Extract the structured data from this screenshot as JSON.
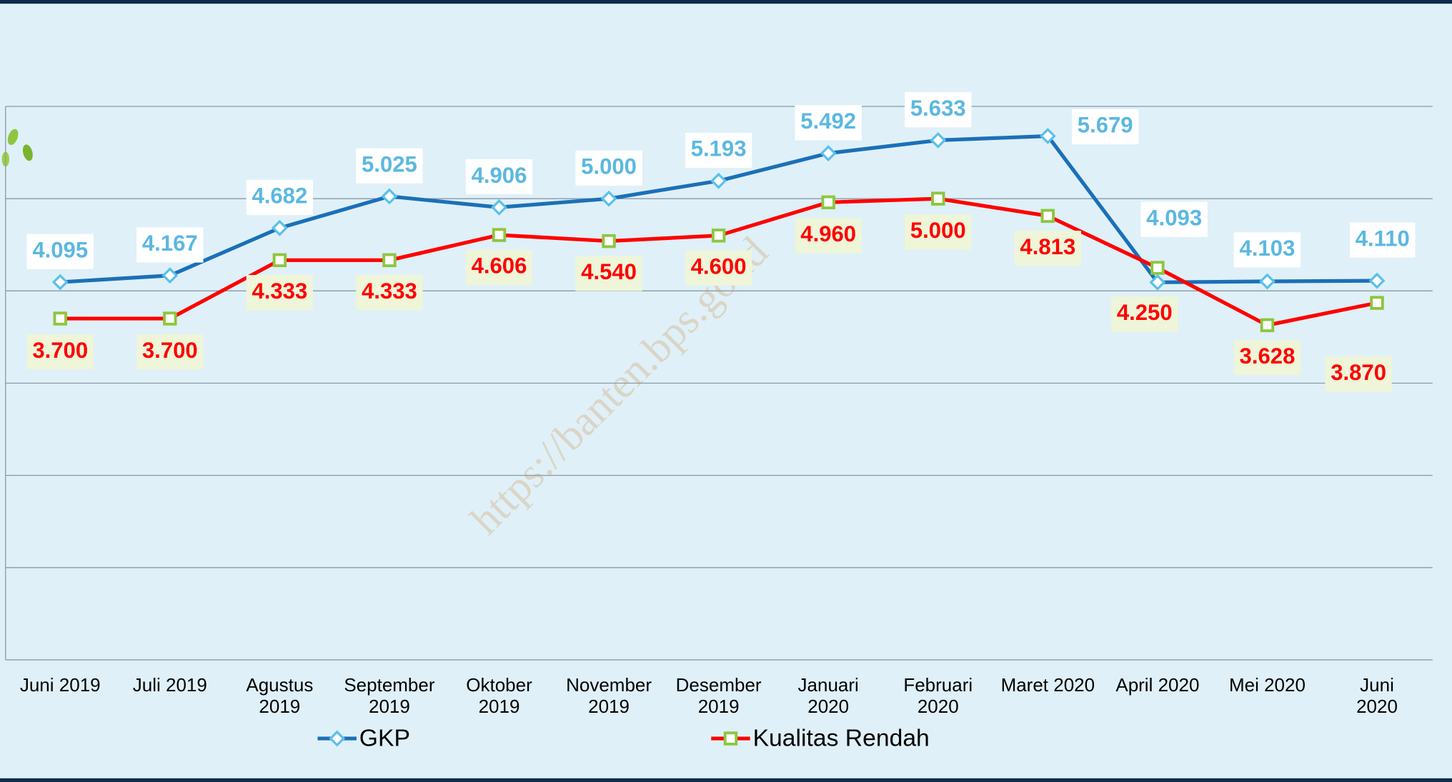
{
  "chart_data": {
    "type": "line",
    "categories": [
      "Juni 2019",
      "Juli 2019",
      "Agustus\n2019",
      "September\n2019",
      "Oktober\n2019",
      "November\n2019",
      "Desember\n2019",
      "Januari\n2020",
      "Februari\n2020",
      "Maret 2020",
      "April 2020",
      "Mei 2020",
      "Juni 2020"
    ],
    "series": [
      {
        "name": "GKP",
        "color": "#1a70b8",
        "marker_color": "#5bc0eb",
        "values": [
          4.095,
          4.167,
          4.682,
          5.025,
          4.906,
          5.0,
          5.193,
          5.492,
          5.633,
          5.679,
          4.093,
          4.103,
          4.11
        ],
        "value_labels": [
          "4.095",
          "4.167",
          "4.682",
          "5.025",
          "4.906",
          "5.000",
          "5.193",
          "5.492",
          "5.633",
          "5.679",
          "4.093",
          "4.103",
          "4.110"
        ]
      },
      {
        "name": "Kualitas Rendah",
        "color": "#ff0000",
        "marker_color": "#8dc63f",
        "values": [
          3.7,
          3.7,
          4.333,
          4.333,
          4.606,
          4.54,
          4.6,
          4.96,
          5.0,
          4.813,
          4.25,
          3.628,
          3.87
        ],
        "value_labels": [
          "3.700",
          "3.700",
          "4.333",
          "4.333",
          "4.606",
          "4.540",
          "4.600",
          "4.960",
          "5.000",
          "4.813",
          "4.250",
          "3.628",
          "3.870"
        ]
      }
    ],
    "ylim": [
      0,
      6
    ],
    "yticks": [
      0,
      1,
      2,
      3,
      4,
      5,
      6
    ],
    "grid": true,
    "watermark": "https://banten.bps.go.id"
  }
}
